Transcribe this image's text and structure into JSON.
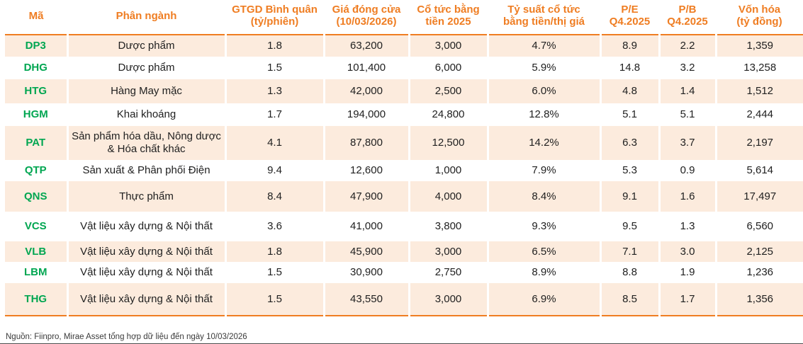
{
  "colors": {
    "accent_orange": "#ef7d22",
    "ticker_green": "#00a651",
    "row_stripe_peach": "#fcebdd",
    "body_text": "#212121",
    "footer_rule": "#4d4d4d"
  },
  "table": {
    "columns": [
      {
        "key": "ticker",
        "label": "Mã"
      },
      {
        "key": "sector",
        "label": "Phân ngành"
      },
      {
        "key": "avg-value",
        "label": "GTGD Bình quân\n(tỷ/phiên)"
      },
      {
        "key": "close-price",
        "label": "Giá đóng cửa\n(10/03/2026)"
      },
      {
        "key": "dividend",
        "label": "Cổ tức bằng\ntiền 2025"
      },
      {
        "key": "yield",
        "label": "Tỷ suất cổ tức\nbằng tiền/thị giá"
      },
      {
        "key": "pe",
        "label": "P/E\nQ4.2025"
      },
      {
        "key": "pb",
        "label": "P/B\nQ4.2025"
      },
      {
        "key": "marketcap",
        "label": "Vốn hóa\n(tỷ đồng)"
      }
    ],
    "rows": [
      [
        "DP3",
        "Dược phẩm",
        "1.8",
        "63,200",
        "3,000",
        "4.7%",
        "8.9",
        "2.2",
        "1,359"
      ],
      [
        "DHG",
        "Dược phẩm",
        "1.5",
        "101,400",
        "6,000",
        "5.9%",
        "14.8",
        "3.2",
        "13,258"
      ],
      [
        "HTG",
        "Hàng May mặc",
        "1.3",
        "42,000",
        "2,500",
        "6.0%",
        "4.8",
        "1.4",
        "1,512"
      ],
      [
        "HGM",
        "Khai khoáng",
        "1.7",
        "194,000",
        "24,800",
        "12.8%",
        "5.1",
        "5.1",
        "2,444"
      ],
      [
        "PAT",
        "Sản phẩm hóa dầu, Nông dược & Hóa chất khác",
        "4.1",
        "87,800",
        "12,500",
        "14.2%",
        "6.3",
        "3.7",
        "2,197"
      ],
      [
        "QTP",
        "Sản xuất & Phân phối Điện",
        "9.4",
        "12,600",
        "1,000",
        "7.9%",
        "5.3",
        "0.9",
        "5,614"
      ],
      [
        "QNS",
        "Thực phẩm",
        "8.4",
        "47,900",
        "4,000",
        "8.4%",
        "9.1",
        "1.6",
        "17,497"
      ],
      [
        "VCS",
        "Vật liệu xây dựng & Nội thất",
        "3.6",
        "41,000",
        "3,800",
        "9.3%",
        "9.5",
        "1.3",
        "6,560"
      ],
      [
        "VLB",
        "Vật liệu xây dựng & Nội thất",
        "1.8",
        "45,900",
        "3,000",
        "6.5%",
        "7.1",
        "3.0",
        "2,125"
      ],
      [
        "LBM",
        "Vật liệu xây dựng & Nội thất",
        "1.5",
        "30,900",
        "2,750",
        "8.9%",
        "8.8",
        "1.9",
        "1,236"
      ],
      [
        "THG",
        "Vật liệu xây dựng & Nội thất",
        "1.5",
        "43,550",
        "3,000",
        "6.9%",
        "8.5",
        "1.7",
        "1,356"
      ]
    ]
  },
  "footer": {
    "source": "Nguồn: Fiinpro, Mirae Asset tổng hợp dữ liệu đến ngày 10/03/2026"
  }
}
